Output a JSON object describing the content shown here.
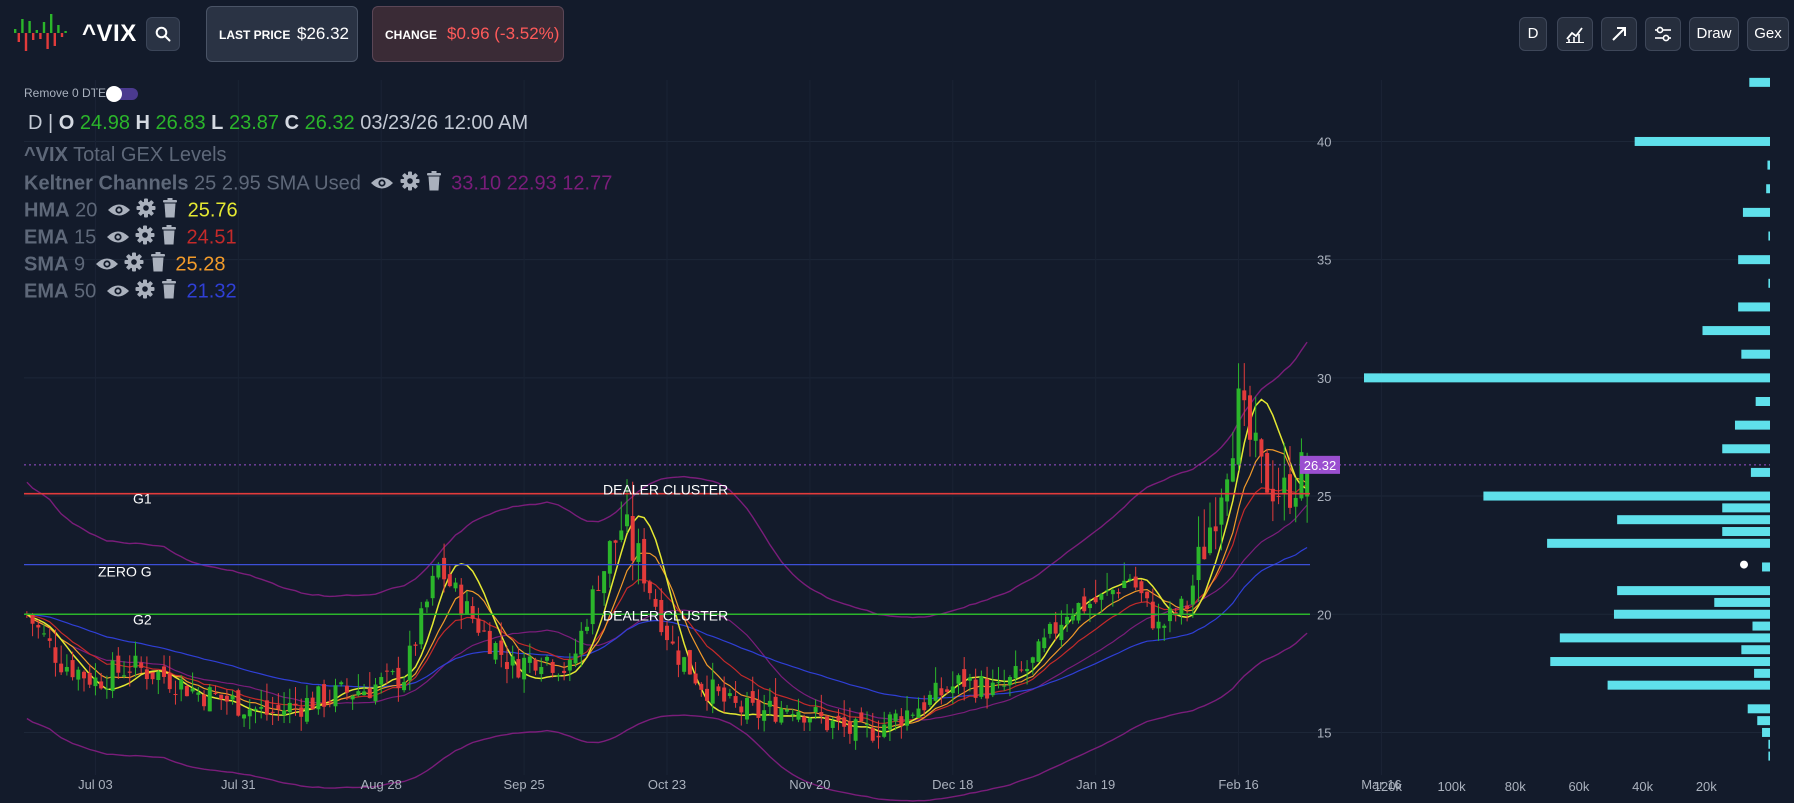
{
  "header": {
    "ticker": "^VIX",
    "last_price_label": "LAST PRICE",
    "last_price": "$26.32",
    "change_label": "CHANGE",
    "change": "$0.96 (-3.52%)",
    "buttons": {
      "interval": "D",
      "draw": "Draw",
      "gex": "Gex"
    },
    "icons": [
      "search-icon",
      "chart-line-icon",
      "arrow-up-right-icon",
      "sliders-icon"
    ],
    "colors": {
      "up": "#2bb52b",
      "down": "#e23b3b",
      "gex_bar": "#5fe0eb",
      "price_tag": "#9b4fd0"
    }
  },
  "toggle": {
    "label": "Remove 0 DTE",
    "on": true
  },
  "ohlc": {
    "interval": "D",
    "sep": "|",
    "o_label": "O",
    "o": "24.98",
    "h_label": "H",
    "h": "26.83",
    "l_label": "L",
    "l": "23.87",
    "c_label": "C",
    "c": "26.32",
    "datetime": "03/23/26 12:00 AM"
  },
  "indicators": {
    "gex_title_bold": "^VIX",
    "gex_title": "Total GEX Levels",
    "keltner_name": "Keltner Channels",
    "keltner_params": "25 2.95 SMA Used",
    "keltner_values": "33.10 22.93 12.77",
    "hma_name": "HMA",
    "hma_param": "20",
    "hma_value": "25.76",
    "ema15_name": "EMA",
    "ema15_param": "15",
    "ema15_value": "24.51",
    "sma_name": "SMA",
    "sma_param": "9",
    "sma_value": "25.28",
    "ema50_name": "EMA",
    "ema50_param": "50",
    "ema50_value": "21.32",
    "colors": {
      "keltner": "#7a1d7a",
      "hma": "#e4e832",
      "ema15": "#c42a2a",
      "sma": "#f19a2a",
      "ema50": "#2f3fd6"
    }
  },
  "chart_data": [
    {
      "type": "candlestick",
      "title": "",
      "x_ticks": [
        "Jul 03",
        "Jul 31",
        "Aug 28",
        "Sep 25",
        "Oct 23",
        "Nov 20",
        "Dec 18",
        "Jan 19",
        "Feb 16",
        "Mar 16"
      ],
      "y_ticks": [
        15,
        20,
        25,
        30,
        35,
        40
      ],
      "ylim": [
        13.2,
        42.6
      ],
      "last_price_tag": "26.32",
      "last_price": 26.32,
      "levels": [
        {
          "name": "G1",
          "value": 25.1,
          "color": "#e23b3b"
        },
        {
          "name": "ZERO G",
          "value": 22.1,
          "color": "#3c4fd8"
        },
        {
          "name": "G2",
          "value": 20.0,
          "color": "#2bb52b"
        }
      ],
      "annotations": [
        {
          "text": "DEALER CLUSTER",
          "value": 25.1
        },
        {
          "text": "DEALER CLUSTER",
          "value": 20.0
        }
      ],
      "close_anchors": [
        [
          0,
          20
        ],
        [
          6,
          18
        ],
        [
          12,
          17.2
        ],
        [
          18,
          17.8
        ],
        [
          24,
          17.4
        ],
        [
          30,
          16.7
        ],
        [
          36,
          16.3
        ],
        [
          42,
          15.8
        ],
        [
          48,
          16.2
        ],
        [
          54,
          16.6
        ],
        [
          60,
          16.9
        ],
        [
          66,
          17.4
        ],
        [
          72,
          22
        ],
        [
          76,
          20.5
        ],
        [
          80,
          19.2
        ],
        [
          85,
          17.8
        ],
        [
          90,
          18.3
        ],
        [
          95,
          17.6
        ],
        [
          100,
          21.5
        ],
        [
          104,
          23.7
        ],
        [
          108,
          21.7
        ],
        [
          113,
          18.6
        ],
        [
          118,
          17.1
        ],
        [
          123,
          16.1
        ],
        [
          128,
          15.8
        ],
        [
          134,
          16.2
        ],
        [
          140,
          15.4
        ],
        [
          146,
          14.9
        ],
        [
          152,
          15.6
        ],
        [
          158,
          16.4
        ],
        [
          164,
          17.2
        ],
        [
          170,
          16.7
        ],
        [
          176,
          17.9
        ],
        [
          182,
          20.2
        ],
        [
          188,
          20.6
        ],
        [
          193,
          21.6
        ],
        [
          198,
          19.4
        ],
        [
          203,
          20.4
        ],
        [
          208,
          24.6
        ],
        [
          212,
          28.7
        ],
        [
          216,
          25.9
        ],
        [
          220,
          25.1
        ],
        [
          224,
          26.3
        ]
      ],
      "gex_bars": [
        [
          42.5,
          6.5
        ],
        [
          40,
          42.5
        ],
        [
          39,
          0.8
        ],
        [
          38,
          1.2
        ],
        [
          37,
          8.5
        ],
        [
          36,
          0.5
        ],
        [
          35,
          10
        ],
        [
          34,
          0.5
        ],
        [
          33,
          10
        ],
        [
          32,
          21.2
        ],
        [
          31,
          9
        ],
        [
          30,
          127.5
        ],
        [
          29,
          4.5
        ],
        [
          28,
          11
        ],
        [
          27,
          15
        ],
        [
          26,
          6
        ],
        [
          25,
          90
        ],
        [
          24.5,
          15
        ],
        [
          24,
          48
        ],
        [
          23.5,
          15
        ],
        [
          23,
          70
        ],
        [
          22,
          2.5
        ],
        [
          21,
          48
        ],
        [
          20.5,
          17.5
        ],
        [
          20,
          49
        ],
        [
          19.5,
          5.5
        ],
        [
          19,
          66
        ],
        [
          18.5,
          9
        ],
        [
          18,
          69
        ],
        [
          17.5,
          5
        ],
        [
          17,
          51
        ],
        [
          16,
          7
        ],
        [
          15.5,
          4
        ],
        [
          15,
          2.5
        ],
        [
          14.5,
          0.5
        ],
        [
          14,
          0.5
        ]
      ],
      "gex_x_ticks": [
        "120k",
        "100k",
        "80k",
        "60k",
        "40k",
        "20k"
      ],
      "gex_xlim": [
        0,
        127.5
      ]
    }
  ]
}
